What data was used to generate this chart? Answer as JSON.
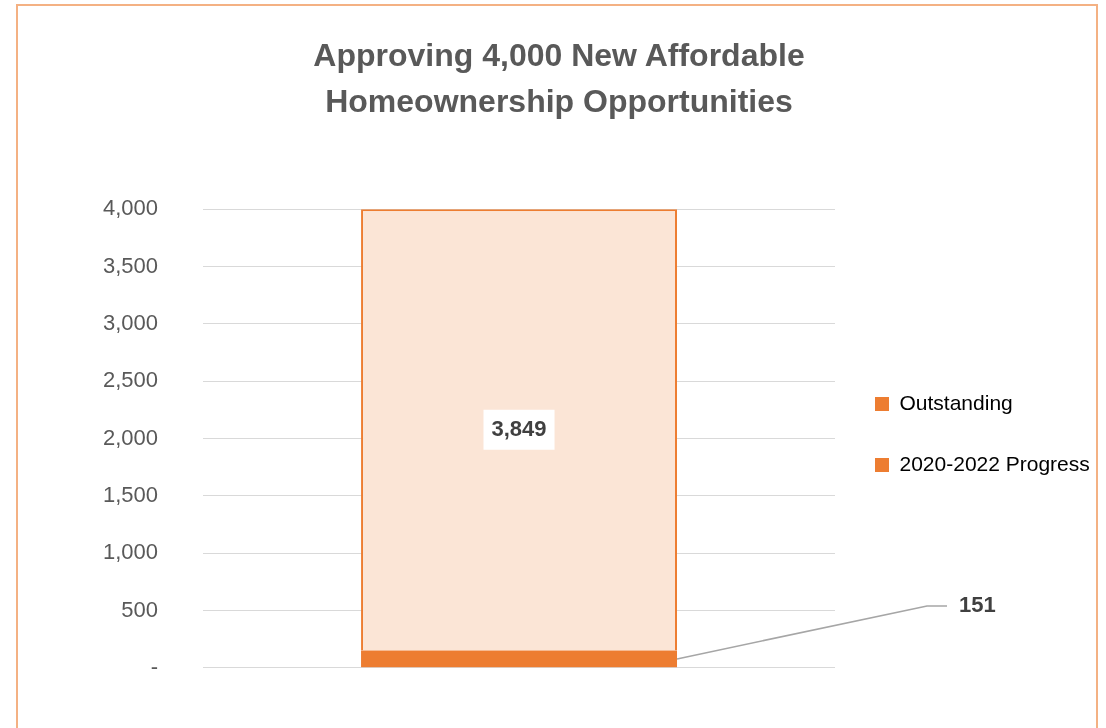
{
  "chart_data": {
    "type": "bar",
    "title": "Approving 4,000 New Affordable Homeownership Opportunities",
    "categories": [
      null
    ],
    "stacked": true,
    "series": [
      {
        "name": "2020-2022 Progress",
        "color": "#ed7d31",
        "values": [
          151
        ],
        "value_labels": [
          "151"
        ]
      },
      {
        "name": "Outstanding",
        "color": "#ed7d31",
        "values": [
          3849
        ],
        "value_labels": [
          "3,849"
        ]
      }
    ],
    "ylim": [
      0,
      4000
    ],
    "yticks": [
      {
        "value": 0,
        "label": "-"
      },
      500,
      {
        "value": 1000,
        "label": "1,000"
      },
      {
        "value": 1500,
        "label": "1,500"
      },
      {
        "value": 2000,
        "label": "2,000"
      },
      {
        "value": 2500,
        "label": "2,500"
      },
      {
        "value": 3000,
        "label": "3,000"
      },
      {
        "value": 3500,
        "label": "3,500"
      },
      {
        "value": 4000,
        "label": "4,000"
      }
    ],
    "grid": "y",
    "legend": "right"
  }
}
